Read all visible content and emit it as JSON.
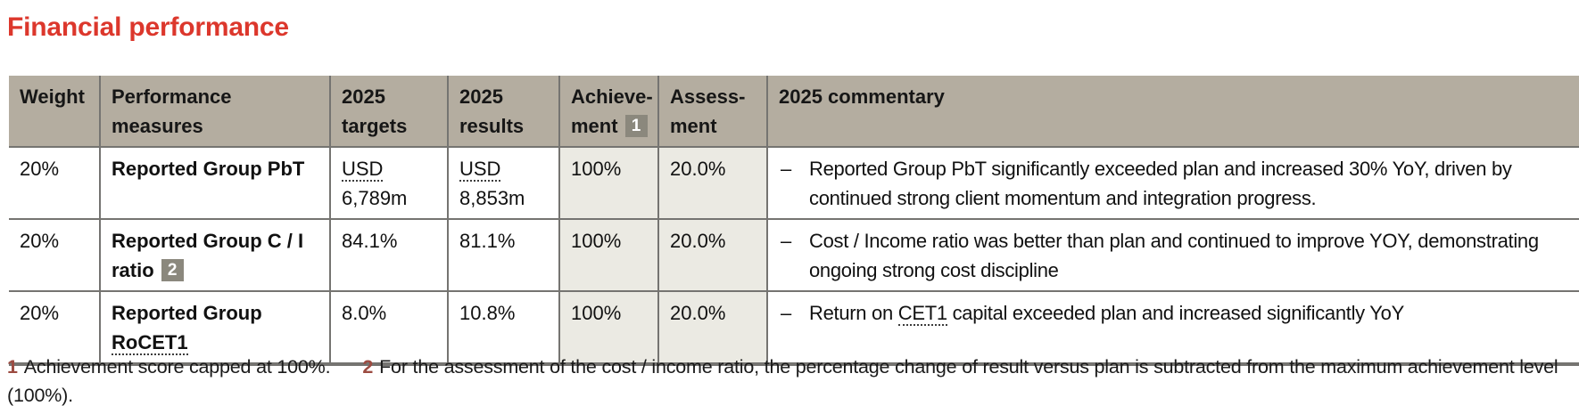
{
  "page": {
    "title": "Financial performance"
  },
  "colors": {
    "title_red": "#dc372c",
    "header_bg": "#b4ada0",
    "shaded_cell_bg": "#ebeae3",
    "border_gray": "#757471",
    "badge_bg": "#8b887d",
    "footnote_marker": "#9c4b41"
  },
  "table": {
    "dash": "–",
    "headers": {
      "weight": "Weight",
      "measures_line1": "Performance",
      "measures_line2": "measures",
      "targets_line1": "2025",
      "targets_line2": "targets",
      "results_line1": "2025",
      "results_line2": "results",
      "achievement_line1": "Achieve-",
      "achievement_line2": "ment",
      "achievement_badge": "1",
      "assessment_line1": "Assess-",
      "assessment_line2": "ment",
      "commentary": "2025 commentary"
    },
    "rows": [
      {
        "weight": "20%",
        "measure_line1": "Reported Group PbT",
        "measure_line2": "",
        "target_line1": "USD",
        "target_line2": "6,789m",
        "result_line1": "USD",
        "result_line2": "8,853m",
        "achievement": "100%",
        "assessment": "20.0%",
        "commentary_pre": "Reported Group PbT significantly exceeded plan and increased 30% YoY, driven by continued strong client momentum and integration progress.",
        "commentary_underlined": "",
        "commentary_post": ""
      },
      {
        "weight": "20%",
        "measure_line1": "Reported Group C / I",
        "measure_line2": "ratio",
        "measure_badge": "2",
        "target_line1": "84.1%",
        "target_line2": "",
        "result_line1": "81.1%",
        "result_line2": "",
        "achievement": "100%",
        "assessment": "20.0%",
        "commentary_pre": "Cost / Income ratio was better than plan and continued to improve YOY, demonstrating ongoing strong cost discipline",
        "commentary_underlined": "",
        "commentary_post": ""
      },
      {
        "weight": "20%",
        "measure_line1": "Reported Group",
        "measure_line2": "RoCET1",
        "target_line1": "8.0%",
        "target_line2": "",
        "result_line1": "10.8%",
        "result_line2": "",
        "achievement": "100%",
        "assessment": "20.0%",
        "commentary_pre": "Return on ",
        "commentary_underlined": "CET1",
        "commentary_post": " capital exceeded plan and increased significantly YoY"
      }
    ]
  },
  "footnotes": [
    {
      "marker": "1",
      "text": "Achievement score capped at 100%."
    },
    {
      "marker": "2",
      "text": "For the assessment of the cost / income ratio, the percentage change of result versus plan is subtracted from the maximum achievement level (100%)."
    }
  ]
}
